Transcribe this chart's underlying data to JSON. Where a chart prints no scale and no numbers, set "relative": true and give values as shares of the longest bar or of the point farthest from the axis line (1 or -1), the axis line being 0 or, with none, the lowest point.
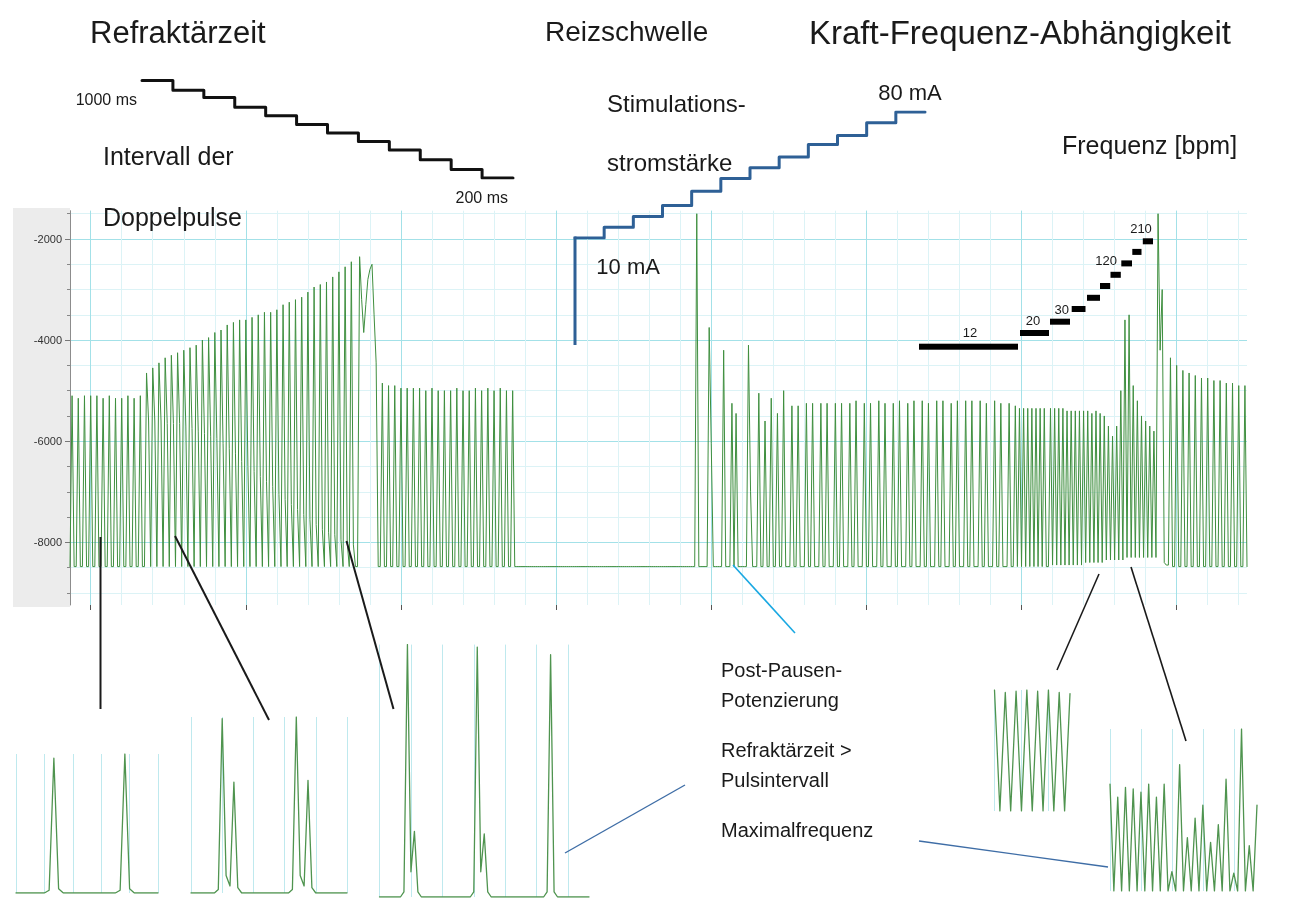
{
  "chart_data": [
    {
      "type": "step",
      "title": "Refraktärzeit",
      "categories": [
        null,
        null,
        null,
        null,
        null,
        null,
        null,
        null,
        null,
        null,
        null,
        null,
        null
      ],
      "values": [
        1000,
        1000,
        920,
        860,
        780,
        710,
        640,
        570,
        500,
        430,
        350,
        270,
        200
      ],
      "color": "#111111",
      "tick_labels": false,
      "value_labels": [
        "1000 ms",
        null,
        null,
        null,
        null,
        null,
        null,
        null,
        null,
        null,
        null,
        null,
        "200 ms"
      ],
      "annotations": [
        "Intervall der\nDoppelpulse"
      ]
    },
    {
      "type": "step",
      "title": "Reizschwelle",
      "categories": [
        null,
        null,
        null,
        null,
        null,
        null,
        null,
        null,
        null,
        null,
        null,
        null,
        null
      ],
      "values": [
        10,
        10,
        16,
        22,
        28,
        36,
        43,
        49,
        55,
        62,
        67,
        74,
        80
      ],
      "color": "#2e6096",
      "tick_labels": false,
      "value_labels": [
        null,
        "10 mA",
        null,
        null,
        null,
        null,
        null,
        null,
        null,
        null,
        null,
        null,
        "80 mA"
      ],
      "annotations": [
        "Stimulations-\nstromstärke",
        "Kraft-Frequenz-Abhängigkeit",
        "Frequenz [bpm]",
        "12",
        "20",
        "30",
        "120",
        "210"
      ]
    },
    {
      "type": "line",
      "color": "#3f8f3f",
      "ylim": [
        -9240,
        -1440
      ],
      "yticks": [
        {
          "value": -9000,
          "label": null
        },
        {
          "value": -8500,
          "label": null
        },
        -8000,
        {
          "value": -7500,
          "label": null
        },
        {
          "value": -7000,
          "label": null
        },
        {
          "value": -6500,
          "label": null
        },
        -6000,
        {
          "value": -5500,
          "label": null
        },
        {
          "value": -5000,
          "label": null
        },
        {
          "value": -4500,
          "label": null
        },
        -4000,
        {
          "value": -3500,
          "label": null
        },
        {
          "value": -3000,
          "label": null
        },
        {
          "value": -2500,
          "label": null
        },
        -2000,
        {
          "value": -1500,
          "label": null
        }
      ],
      "grid": true,
      "tick_labels": "y",
      "categories": [
        null,
        null,
        null,
        null,
        null,
        null,
        null,
        null,
        null,
        null,
        null,
        null,
        null,
        null,
        null,
        null,
        null,
        null,
        null,
        null,
        null,
        null,
        null,
        null,
        null,
        null,
        null,
        null,
        null,
        null,
        null,
        null,
        null,
        null,
        null,
        null,
        null,
        null,
        null,
        null,
        null,
        null,
        null,
        null,
        null,
        null,
        null,
        null,
        null,
        null,
        null,
        null,
        null,
        null,
        null,
        null,
        null,
        null,
        null,
        null,
        null,
        null,
        null,
        null,
        null,
        null,
        null,
        null,
        null,
        null,
        null,
        null,
        null,
        null,
        null,
        null,
        null,
        null,
        null,
        null,
        null,
        null,
        null,
        null,
        null,
        null,
        null,
        null,
        null,
        null,
        null,
        null,
        null,
        null,
        null,
        null,
        null,
        null,
        null,
        null,
        null,
        null,
        null,
        null,
        null,
        null,
        null,
        null,
        null,
        null,
        null,
        null,
        null,
        null,
        null,
        null,
        null,
        null,
        null,
        null,
        null,
        null,
        null,
        null,
        null,
        null,
        null,
        null,
        null,
        null,
        null,
        null,
        null,
        null,
        null,
        null,
        null,
        null,
        null,
        null,
        null,
        null,
        null,
        null,
        null,
        null,
        null,
        null,
        null,
        null,
        null,
        null,
        null,
        null,
        null,
        null,
        null,
        null,
        null,
        null,
        null,
        null,
        null,
        null,
        null,
        null,
        null,
        null,
        null,
        null,
        null,
        null,
        null,
        null,
        null,
        null,
        null,
        null,
        null,
        null,
        null,
        null,
        null,
        null,
        null,
        null,
        null,
        null,
        null,
        null,
        null,
        null,
        null,
        null,
        null,
        null,
        null,
        null,
        null,
        null,
        null,
        null,
        null,
        null,
        null,
        null,
        null,
        null,
        null,
        null,
        null,
        null,
        null,
        null,
        null,
        null,
        null,
        null,
        null,
        null,
        null,
        null,
        null,
        null,
        null,
        null,
        null,
        null,
        null,
        null,
        null,
        null,
        null,
        null,
        null,
        null,
        null,
        null,
        null,
        null,
        null,
        null,
        null,
        null,
        null,
        null,
        null,
        null,
        null,
        null,
        null,
        null,
        null,
        null,
        null,
        null,
        null,
        null,
        null,
        null,
        null,
        null,
        null,
        null,
        null,
        null,
        null,
        null,
        null,
        null,
        null,
        null,
        null,
        null,
        null,
        null,
        null,
        null,
        null,
        null,
        null,
        null,
        null,
        null,
        null,
        null,
        null,
        null,
        null,
        null,
        null,
        null,
        null,
        null,
        null,
        null,
        null,
        null,
        null,
        null,
        null,
        null,
        null,
        null,
        null,
        null,
        null,
        null,
        null,
        null,
        null,
        null,
        null,
        null,
        null,
        null,
        null,
        null,
        null,
        null,
        null,
        null,
        null,
        null,
        null,
        null,
        null,
        null,
        null,
        null,
        null,
        null,
        null,
        null,
        null,
        null,
        null,
        null,
        null,
        null,
        null,
        null,
        null,
        null,
        null,
        null,
        null,
        null,
        null,
        null,
        null,
        null,
        null,
        null,
        null,
        null,
        null,
        null,
        null,
        null,
        null,
        null,
        null,
        null,
        null,
        null,
        null,
        null,
        null,
        null,
        null,
        null,
        null,
        null,
        null,
        null,
        null,
        null,
        null,
        null,
        null,
        null,
        null,
        null,
        null,
        null,
        null,
        null,
        null,
        null,
        null,
        null,
        null,
        null,
        null,
        null,
        null,
        null,
        null,
        null,
        null,
        null,
        null,
        null,
        null,
        null,
        null,
        null,
        null,
        null,
        null,
        null,
        null,
        null,
        null,
        null,
        null,
        null,
        null,
        null,
        null,
        null,
        null,
        null,
        null,
        null,
        null,
        null,
        null,
        null,
        null,
        null,
        null,
        null,
        null,
        null,
        null,
        null,
        null,
        null,
        null,
        null,
        null,
        null,
        null,
        null,
        null,
        null,
        null,
        null,
        null,
        null,
        null,
        null,
        null,
        null,
        null,
        null,
        null,
        null,
        null,
        null,
        null,
        null,
        null,
        null,
        null,
        null,
        null,
        null,
        null,
        null,
        null,
        null,
        null,
        null,
        null,
        null,
        null,
        null,
        null,
        null,
        null,
        null,
        null,
        null,
        null,
        null,
        null,
        null,
        null,
        null,
        null,
        null,
        null,
        null,
        null,
        null,
        null,
        null,
        null,
        null,
        null,
        null,
        null,
        null,
        null,
        null,
        null,
        null,
        null,
        null,
        null,
        null,
        null,
        null,
        null,
        null,
        null,
        null,
        null,
        null,
        null,
        null,
        null,
        null,
        null,
        null,
        null,
        null,
        null,
        null,
        null,
        null,
        null,
        null,
        null,
        null,
        null,
        null,
        null,
        null,
        null,
        null,
        null,
        null,
        null,
        null,
        null,
        null,
        null,
        null,
        null,
        null,
        null,
        null,
        null,
        null,
        null,
        null,
        null,
        null,
        null,
        null,
        null,
        null,
        null,
        null,
        null,
        null
      ],
      "values": [
        -8480,
        -5100,
        -8480,
        -8480,
        -5150,
        -8480,
        -8480,
        -5100,
        -8480,
        -8480,
        -5100,
        -8480,
        -8480,
        -5100,
        -8480,
        -8480,
        -5150,
        -8480,
        -8480,
        -5100,
        -8480,
        -8480,
        -5150,
        -8480,
        -8480,
        -5150,
        -8480,
        -8480,
        -5100,
        -8480,
        -8480,
        -5150,
        -8480,
        -8480,
        -5100,
        -8480,
        -8480,
        -4650,
        -5600,
        -8480,
        -4550,
        -5600,
        -8480,
        -4450,
        -5600,
        -8480,
        -4350,
        -5650,
        -8480,
        -4300,
        -5650,
        -8480,
        -4250,
        -5650,
        -8480,
        -4200,
        -5700,
        -8480,
        -4150,
        -5750,
        -8480,
        -4100,
        -5800,
        -8480,
        -4000,
        -5850,
        -8480,
        -3950,
        -5900,
        -8480,
        -3850,
        -5950,
        -8480,
        -3800,
        -6050,
        -8480,
        -3700,
        -6150,
        -8480,
        -3650,
        -6250,
        -8480,
        -3600,
        -6400,
        -8480,
        -3600,
        -6500,
        -8480,
        -3550,
        -6600,
        -8480,
        -3500,
        -6700,
        -8480,
        -3450,
        -6800,
        -8480,
        -3450,
        -6900,
        -8480,
        -3400,
        -7050,
        -8480,
        -3300,
        -7150,
        -8480,
        -3250,
        -7250,
        -8480,
        -3200,
        -7350,
        -8480,
        -3150,
        -7450,
        -8480,
        -3050,
        -7550,
        -8480,
        -2950,
        -7650,
        -8480,
        -2900,
        -7750,
        -8480,
        -2850,
        -7800,
        -8480,
        -2750,
        -7850,
        -8480,
        -2650,
        -7950,
        -8480,
        -2550,
        -8000,
        -8480,
        -2450,
        -8050,
        -8480,
        -8480,
        -2350,
        -3200,
        -3850,
        -3300,
        -2800,
        -2600,
        -2500,
        -3500,
        -4450,
        -8480,
        -8480,
        -4850,
        -8480,
        -8480,
        -4900,
        -8480,
        -8480,
        -4900,
        -8480,
        -8480,
        -4950,
        -8480,
        -8480,
        -4950,
        -8480,
        -8480,
        -4950,
        -8480,
        -8480,
        -4950,
        -8480,
        -8480,
        -5000,
        -8480,
        -8480,
        -4950,
        -8480,
        -8480,
        -5000,
        -8480,
        -8480,
        -5000,
        -8480,
        -8480,
        -5000,
        -8480,
        -8480,
        -4950,
        -8480,
        -8480,
        -5000,
        -8480,
        -8480,
        -5000,
        -8480,
        -8480,
        -4950,
        -8480,
        -8480,
        -5000,
        -8480,
        -8480,
        -4950,
        -8480,
        -8480,
        -5000,
        -8480,
        -8480,
        -4950,
        -8480,
        -8480,
        -5000,
        -8480,
        -8480,
        -5000,
        -8480,
        -8480,
        -8480,
        -8480,
        -8480,
        -8480,
        -8480,
        -8480,
        -8480,
        -8480,
        -8480,
        -8480,
        -8480,
        -8480,
        -8480,
        -8480,
        -8480,
        -8480,
        -8480,
        -8480,
        -8480,
        -8480,
        -8480,
        -8480,
        -8480,
        -8480,
        -8480,
        -8480,
        -8480,
        -8480,
        -8480,
        -8480,
        -8480,
        -8480,
        -8480,
        -8480,
        -8480,
        -8480,
        -8480,
        -8480,
        -8480,
        -8480,
        -8480,
        -8480,
        -8480,
        -8480,
        -8480,
        -8480,
        -8480,
        -8480,
        -8480,
        -8480,
        -8480,
        -8480,
        -8480,
        -8480,
        -8480,
        -8480,
        -8480,
        -8480,
        -8480,
        -8480,
        -8480,
        -8480,
        -8480,
        -8480,
        -8480,
        -8480,
        -8480,
        -8480,
        -8480,
        -8480,
        -8480,
        -8480,
        -8480,
        -8480,
        -8480,
        -8480,
        -8480,
        -8480,
        -8480,
        -8480,
        -8480,
        -8480,
        -8480,
        -8480,
        -8480,
        -8480,
        -1500,
        -8480,
        -8480,
        -8480,
        -8480,
        -8480,
        -3750,
        -6050,
        -8480,
        -8480,
        -8480,
        -8480,
        -8480,
        -4200,
        -8480,
        -8480,
        -8480,
        -5250,
        -8480,
        -5450,
        -8480,
        -8480,
        -8480,
        -8480,
        -8480,
        -4100,
        -7000,
        -8480,
        -8480,
        -8480,
        -5050,
        -8480,
        -8480,
        -5600,
        -8480,
        -8480,
        -5150,
        -8480,
        -8480,
        -5450,
        -8480,
        -8480,
        -5000,
        -8480,
        -8480,
        -8480,
        -5300,
        -8480,
        -8480,
        -5300,
        -8480,
        -8480,
        -8480,
        -5250,
        -8480,
        -8480,
        -5250,
        -8480,
        -8480,
        -8480,
        -5250,
        -8480,
        -8480,
        -5250,
        -8480,
        -8480,
        -8480,
        -5250,
        -8480,
        -8480,
        -5250,
        -8480,
        -8480,
        -8480,
        -5250,
        -8480,
        -8480,
        -5200,
        -8480,
        -8480,
        -8480,
        -5250,
        -8480,
        -8480,
        -5250,
        -8480,
        -8480,
        -8480,
        -5200,
        -8480,
        -8480,
        -5250,
        -8480,
        -8480,
        -8480,
        -5250,
        -8480,
        -8480,
        -5200,
        -8480,
        -8480,
        -8480,
        -5250,
        -8480,
        -8480,
        -5200,
        -8480,
        -8480,
        -8480,
        -5200,
        -8480,
        -8480,
        -5250,
        -8480,
        -8480,
        -8480,
        -5200,
        -8480,
        -8480,
        -5200,
        -8480,
        -8480,
        -8480,
        -5250,
        -8480,
        -8480,
        -5200,
        -8480,
        -8480,
        -8480,
        -5200,
        -8480,
        -8480,
        -5200,
        -8480,
        -8480,
        -8480,
        -5200,
        -8480,
        -8480,
        -5250,
        -8480,
        -8480,
        -8480,
        -5200,
        -8480,
        -8480,
        -5250,
        -8480,
        -8480,
        -8480,
        -5250,
        -8480,
        -8480,
        -5300,
        -8480,
        -5350,
        -8480,
        -5350,
        -8480,
        -5350,
        -8480,
        -5350,
        -8480,
        -5350,
        -8480,
        -5350,
        -8480,
        -5350,
        -8480,
        -8480,
        -5350,
        -8450,
        -5350,
        -8450,
        -5350,
        -8450,
        -5350,
        -8450,
        -5400,
        -8450,
        -5400,
        -8450,
        -5400,
        -8450,
        -5400,
        -8450,
        -5400,
        -8400,
        -5400,
        -8400,
        -5450,
        -8400,
        -5400,
        -8400,
        -5450,
        -8400,
        -5500,
        -8350,
        -5700,
        -8350,
        -5900,
        -8350,
        -5700,
        -8350,
        -5000,
        -8350,
        -3600,
        -8300,
        -3500,
        -8300,
        -4900,
        -8300,
        -5200,
        -8300,
        -5500,
        -8300,
        -5600,
        -8300,
        -5700,
        -8300,
        -5800,
        -8300,
        -1500,
        -4200,
        -3000,
        -8400,
        -8450,
        -8450,
        -4350,
        -8480,
        -8480,
        -4500,
        -8480,
        -8480,
        -4600,
        -8480,
        -8480,
        -4650,
        -8480,
        -8480,
        -4700,
        -8480,
        -8480,
        -4750,
        -8480,
        -8480,
        -4750,
        -8480,
        -8480,
        -4800,
        -8480,
        -8480,
        -4800,
        -8480,
        -8480,
        -4850,
        -8480,
        -8480,
        -4850,
        -8480,
        -8480,
        -4900,
        -8480,
        -8480,
        -4900,
        -8480
      ]
    },
    {
      "type": "line",
      "relative": true,
      "grid": "x",
      "color": "#4f944f",
      "categories": [
        null,
        null,
        null,
        null,
        null,
        null,
        null,
        null,
        null,
        null,
        null,
        null,
        null,
        null,
        null,
        null,
        null,
        null,
        null,
        null,
        null,
        null,
        null,
        null,
        null,
        null,
        null,
        null,
        null,
        null,
        null
      ],
      "values": [
        0,
        0,
        0,
        0,
        0,
        0,
        0,
        0.02,
        0.97,
        0.03,
        0,
        0,
        0,
        0,
        0,
        0,
        0,
        0,
        0,
        0,
        0,
        0,
        0.02,
        1,
        0.03,
        0,
        0,
        0,
        0,
        0,
        0
      ]
    },
    {
      "type": "line",
      "relative": true,
      "grid": "x",
      "color": "#4f944f",
      "categories": [
        null,
        null,
        null,
        null,
        null,
        null,
        null,
        null,
        null,
        null,
        null,
        null,
        null,
        null,
        null,
        null,
        null,
        null,
        null,
        null,
        null,
        null,
        null,
        null,
        null,
        null,
        null,
        null,
        null,
        null,
        null,
        null,
        null,
        null,
        null,
        null,
        null,
        null,
        null,
        null,
        null
      ],
      "values": [
        0,
        0,
        0,
        0,
        0,
        0,
        0,
        0.02,
        0.99,
        0.1,
        0.04,
        0.63,
        0.03,
        0,
        0,
        0,
        0,
        0,
        0,
        0,
        0,
        0,
        0,
        0,
        0,
        0,
        0.02,
        1,
        0.1,
        0.04,
        0.64,
        0.03,
        0,
        0,
        0,
        0,
        0,
        0,
        0,
        0,
        0
      ]
    },
    {
      "type": "line",
      "relative": true,
      "grid": "x",
      "color": "#4f944f",
      "annotations": [
        "Post-Pausen-\nPotenzierung",
        "Refraktärzeit >\nPulsintervall",
        "Maximalfrequenz"
      ],
      "categories": [
        null,
        null,
        null,
        null,
        null,
        null,
        null,
        null,
        null,
        null,
        null,
        null,
        null,
        null,
        null,
        null,
        null,
        null,
        null,
        null,
        null,
        null,
        null,
        null,
        null,
        null,
        null,
        null,
        null,
        null,
        null,
        null,
        null,
        null,
        null,
        null,
        null,
        null,
        null,
        null,
        null,
        null,
        null,
        null,
        null,
        null,
        null,
        null,
        null,
        null,
        null,
        null,
        null,
        null,
        null,
        null,
        null,
        null,
        null,
        null,
        null
      ],
      "values": [
        0,
        0,
        0,
        0,
        0,
        0,
        0,
        0.02,
        1,
        0.1,
        0.26,
        0.02,
        0,
        0,
        0,
        0,
        0,
        0,
        0,
        0,
        0,
        0,
        0,
        0,
        0,
        0,
        0,
        0.02,
        0.99,
        0.1,
        0.25,
        0.02,
        0,
        0,
        0,
        0,
        0,
        0,
        0,
        0,
        0,
        0,
        0,
        0,
        0,
        0,
        0,
        0,
        0.02,
        0.96,
        0.02,
        0,
        0,
        0,
        0,
        0,
        0,
        0,
        0,
        0,
        0
      ]
    },
    {
      "type": "line",
      "relative": true,
      "grid": "x",
      "color": "#4f944f",
      "categories": [
        null,
        null,
        null,
        null,
        null,
        null,
        null,
        null,
        null,
        null,
        null,
        null,
        null,
        null,
        null
      ],
      "values": [
        1,
        0,
        0.98,
        0,
        0.99,
        0,
        1,
        0,
        0.99,
        0,
        1,
        0,
        0.98,
        0,
        0.97
      ]
    },
    {
      "type": "line",
      "relative": true,
      "grid": "x",
      "color": "#4f944f",
      "categories": [
        null,
        null,
        null,
        null,
        null,
        null,
        null,
        null,
        null,
        null,
        null,
        null,
        null,
        null,
        null,
        null,
        null,
        null,
        null,
        null,
        null,
        null,
        null,
        null,
        null,
        null,
        null,
        null,
        null,
        null,
        null,
        null,
        null,
        null,
        null,
        null,
        null,
        null,
        null
      ],
      "values": [
        0.66,
        0,
        0.58,
        0,
        0.64,
        0,
        0.63,
        0,
        0.61,
        0,
        0.66,
        0,
        0.58,
        0,
        0.66,
        0,
        0.12,
        0,
        0.78,
        0,
        0.33,
        0,
        0.45,
        0,
        0.53,
        0,
        0.3,
        0,
        0.41,
        0,
        0.69,
        0,
        0.11,
        0,
        1,
        0,
        0.28,
        0,
        0.53
      ]
    }
  ]
}
